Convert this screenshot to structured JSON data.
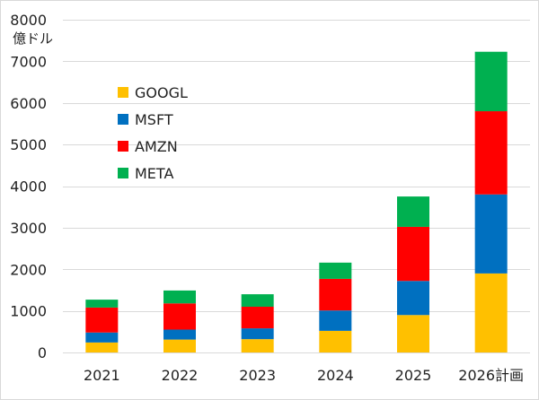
{
  "chart_data": {
    "type": "bar",
    "stacked": true,
    "categories": [
      "2021",
      "2022",
      "2023",
      "2024",
      "2025",
      "2026計画"
    ],
    "series": [
      {
        "name": "GOOGL",
        "color": "#FFC000",
        "values": [
          240,
          310,
          320,
          520,
          900,
          1900
        ]
      },
      {
        "name": "MSFT",
        "color": "#0070C0",
        "values": [
          240,
          240,
          260,
          490,
          820,
          1900
        ]
      },
      {
        "name": "AMZN",
        "color": "#FF0000",
        "values": [
          600,
          630,
          520,
          760,
          1300,
          2000
        ]
      },
      {
        "name": "META",
        "color": "#00B050",
        "values": [
          190,
          310,
          300,
          390,
          730,
          1430
        ]
      }
    ],
    "ylabel": "億ドル",
    "ylim": [
      0,
      8000
    ],
    "yticks": [
      0,
      1000,
      2000,
      3000,
      4000,
      5000,
      6000,
      7000,
      8000
    ],
    "grid": true,
    "legend": "upper-left"
  }
}
